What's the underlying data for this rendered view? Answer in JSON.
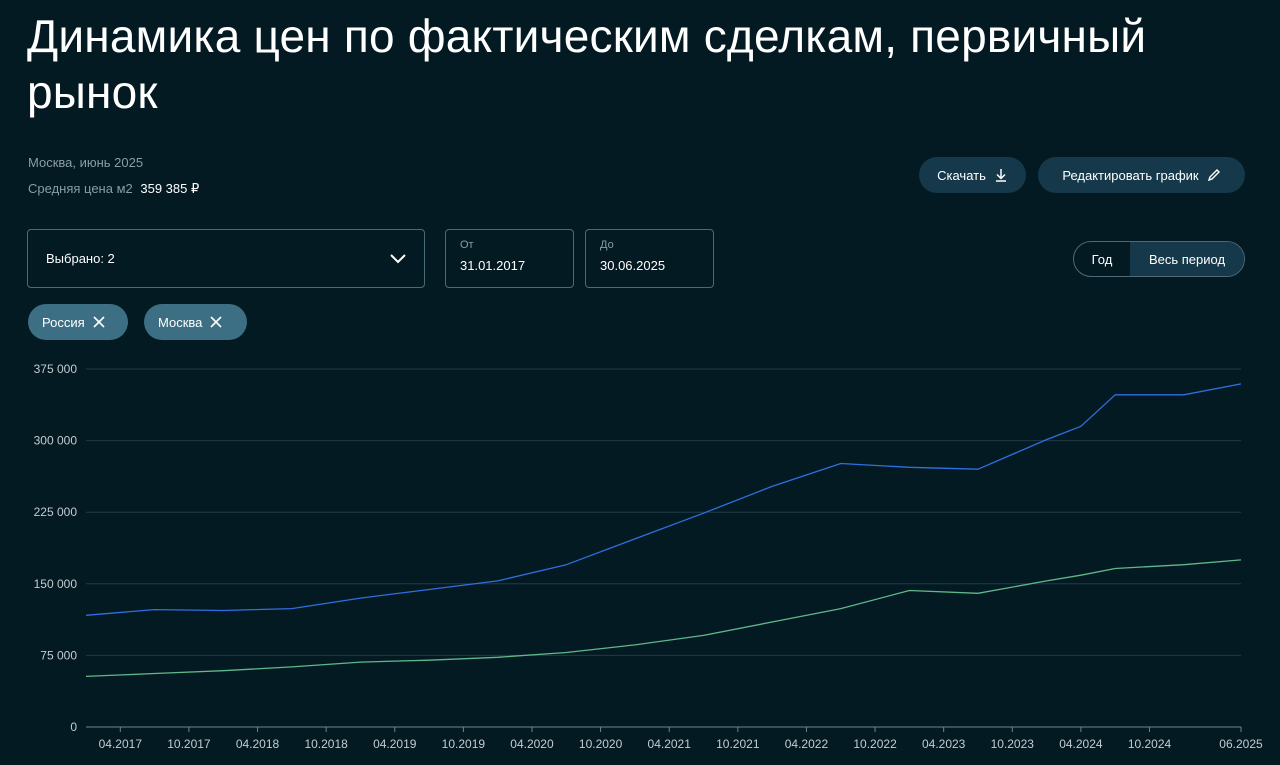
{
  "header": {
    "title": "Динамика цен по фактическим сделкам, первичный рынок",
    "region": "Москва, июнь 2025",
    "avg_label": "Средняя цена м2",
    "avg_value": "359 385 ₽"
  },
  "actions": {
    "download_label": "Скачать",
    "edit_label": "Редактировать график",
    "download_icon": "download-icon",
    "edit_icon": "pencil-icon"
  },
  "filters": {
    "selected_label": "Выбрано: 2",
    "from_label": "От",
    "from_value": "31.01.2017",
    "to_label": "До",
    "to_value": "30.06.2025",
    "period_options": [
      "Год",
      "Весь период"
    ],
    "period_selected": "Весь период",
    "chips": [
      "Россия",
      "Москва"
    ]
  },
  "colors": {
    "background": "#041a22",
    "moscow_line": "#2f6fe0",
    "russia_line": "#5fb88a",
    "button_bg": "#15394a",
    "chip_bg": "#3d6f84"
  },
  "chart_data": {
    "type": "line",
    "title": "",
    "xlabel": "",
    "ylabel": "",
    "ylim": [
      0,
      375000
    ],
    "yticks": [
      "0",
      "75 000",
      "150 000",
      "225 000",
      "300 000",
      "375 000"
    ],
    "xticks": [
      "04.2017",
      "10.2017",
      "04.2018",
      "10.2018",
      "04.2019",
      "10.2019",
      "04.2020",
      "10.2020",
      "04.2021",
      "10.2021",
      "04.2022",
      "10.2022",
      "04.2023",
      "10.2023",
      "04.2024",
      "10.2024",
      "06.2025"
    ],
    "grid": true,
    "x": [
      "01.2017",
      "07.2017",
      "01.2018",
      "07.2018",
      "01.2019",
      "07.2019",
      "01.2020",
      "07.2020",
      "01.2021",
      "07.2021",
      "01.2022",
      "07.2022",
      "01.2023",
      "07.2023",
      "01.2024",
      "04.2024",
      "07.2024",
      "01.2025",
      "06.2025"
    ],
    "series": [
      {
        "name": "Москва",
        "values": [
          117000,
          123000,
          122000,
          124000,
          135000,
          144000,
          153000,
          170000,
          197000,
          224000,
          252000,
          276000,
          272000,
          270000,
          301000,
          315000,
          348000,
          348000,
          359385
        ]
      },
      {
        "name": "Россия",
        "values": [
          53000,
          56000,
          59000,
          63000,
          68000,
          70000,
          73000,
          78000,
          86000,
          96000,
          110000,
          124000,
          143000,
          140000,
          153000,
          159000,
          166000,
          170000,
          175000
        ]
      }
    ]
  }
}
